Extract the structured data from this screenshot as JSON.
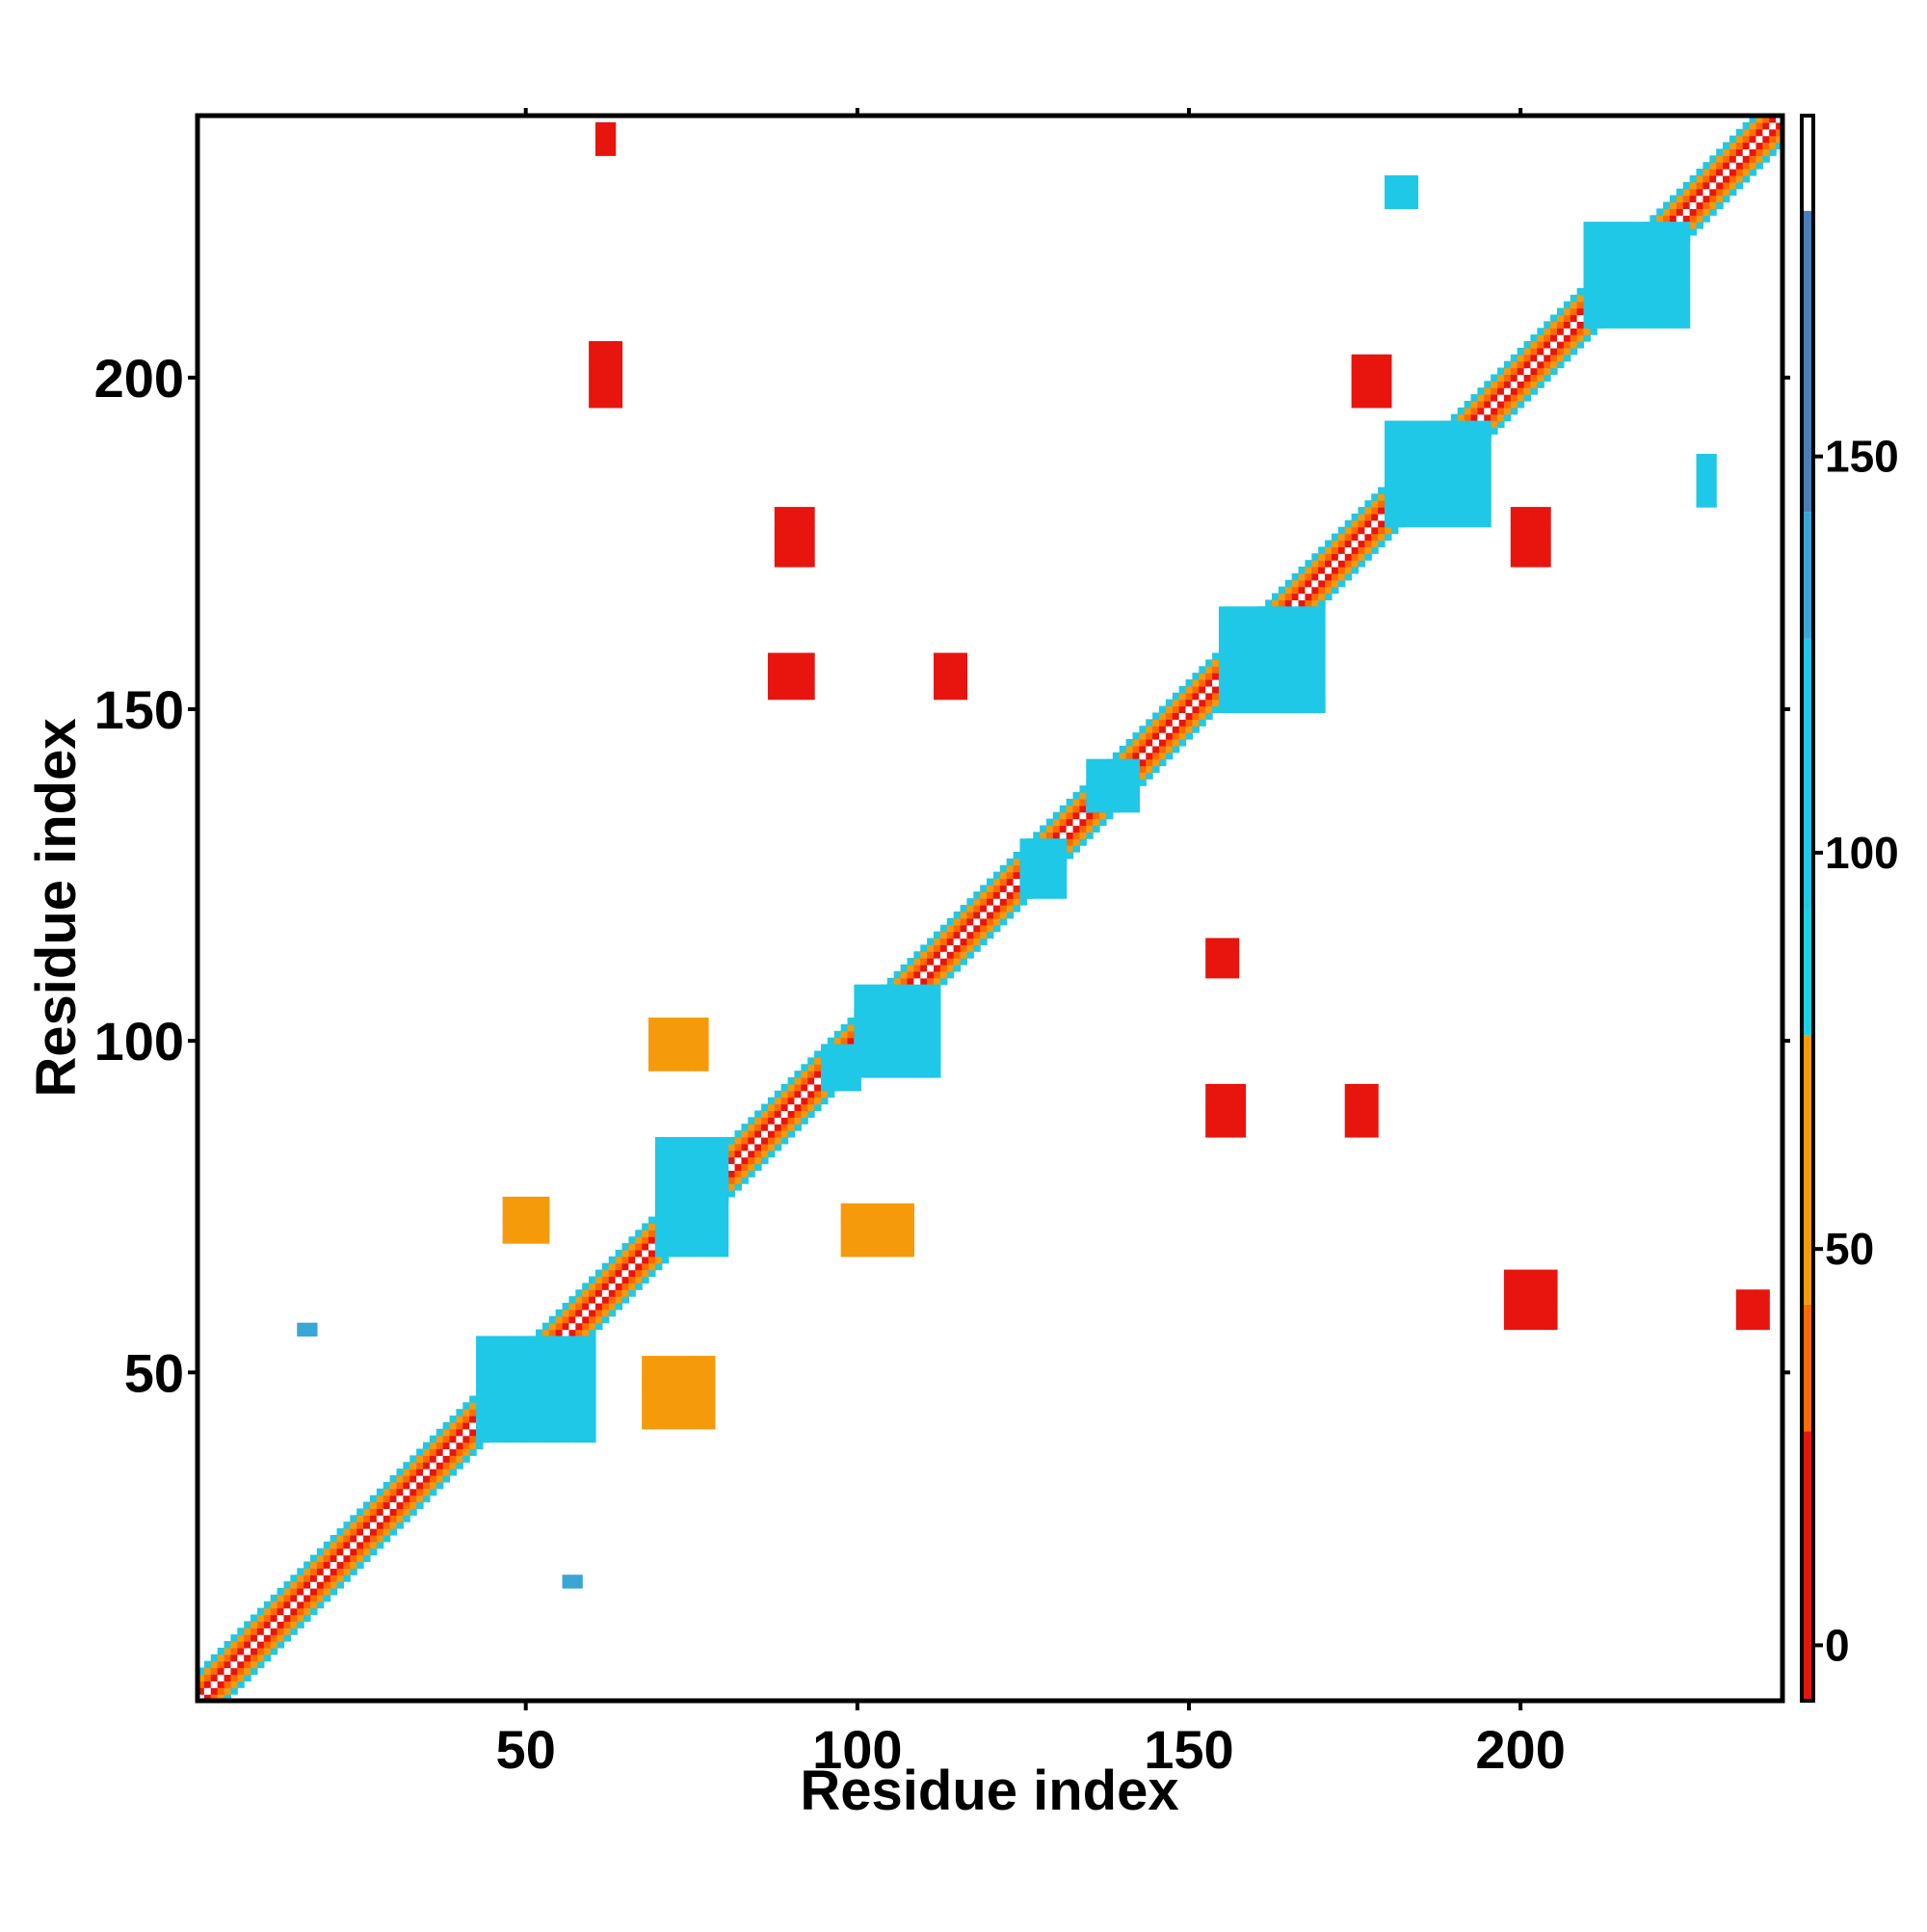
{
  "chart_data": {
    "type": "heatmap",
    "title": "",
    "xlabel": "Residue index",
    "ylabel": "Residue index",
    "xlim": [
      1,
      239
    ],
    "ylim": [
      1,
      239
    ],
    "xticks": [
      50,
      100,
      150,
      200
    ],
    "yticks": [
      50,
      100,
      150,
      200
    ],
    "colorbar": {
      "ticks": [
        0,
        50,
        100,
        150
      ],
      "range": [
        -7,
        193
      ],
      "bands": [
        {
          "from": -7,
          "to": 27,
          "color": "#e8140e"
        },
        {
          "from": 27,
          "to": 43,
          "color": "#ff6a00"
        },
        {
          "from": 43,
          "to": 77,
          "color": "#f59a0a"
        },
        {
          "from": 77,
          "to": 93,
          "color": "#19d3e0"
        },
        {
          "from": 93,
          "to": 127,
          "color": "#1ec8e6"
        },
        {
          "from": 127,
          "to": 143,
          "color": "#3aa6d6"
        },
        {
          "from": 143,
          "to": 181,
          "color": "#4b7eb8"
        },
        {
          "from": 181,
          "to": 193,
          "color": "#ffffff"
        }
      ]
    },
    "grid": false,
    "legend": "colorbar-right",
    "diagonal": {
      "from": 1,
      "to": 239,
      "value": 60
    },
    "contact_blocks": [
      {
        "x": [
          60,
          64
        ],
        "y": [
          196,
          205
        ],
        "value": 5
      },
      {
        "x": [
          61,
          63
        ],
        "y": [
          234,
          238
        ],
        "value": 5
      },
      {
        "x": [
          88,
          93
        ],
        "y": [
          172,
          180
        ],
        "value": 5
      },
      {
        "x": [
          87,
          93
        ],
        "y": [
          152,
          158
        ],
        "value": 5
      },
      {
        "x": [
          112,
          116
        ],
        "y": [
          152,
          158
        ],
        "value": 5
      },
      {
        "x": [
          153,
          157
        ],
        "y": [
          110,
          115
        ],
        "value": 5
      },
      {
        "x": [
          153,
          158
        ],
        "y": [
          86,
          93
        ],
        "value": 5
      },
      {
        "x": [
          174,
          178
        ],
        "y": [
          86,
          93
        ],
        "value": 5
      },
      {
        "x": [
          175,
          180
        ],
        "y": [
          196,
          203
        ],
        "value": 5
      },
      {
        "x": [
          199,
          204
        ],
        "y": [
          172,
          180
        ],
        "value": 5
      },
      {
        "x": [
          198,
          205
        ],
        "y": [
          57,
          65
        ],
        "value": 5
      },
      {
        "x": [
          233,
          237
        ],
        "y": [
          57,
          62
        ],
        "value": 5
      },
      {
        "x": [
          100,
          112
        ],
        "y": [
          95,
          108
        ],
        "value": 100
      },
      {
        "x": [
          43,
          60
        ],
        "y": [
          40,
          55
        ],
        "value": 100
      },
      {
        "x": [
          95,
          100
        ],
        "y": [
          93,
          99
        ],
        "value": 100
      },
      {
        "x": [
          180,
          195
        ],
        "y": [
          178,
          193
        ],
        "value": 100
      },
      {
        "x": [
          210,
          225
        ],
        "y": [
          208,
          223
        ],
        "value": 100
      },
      {
        "x": [
          155,
          170
        ],
        "y": [
          150,
          165
        ],
        "value": 100
      },
      {
        "x": [
          70,
          80
        ],
        "y": [
          68,
          85
        ],
        "value": 100
      },
      {
        "x": [
          69,
          77
        ],
        "y": [
          96,
          103
        ],
        "value": 60
      },
      {
        "x": [
          98,
          108
        ],
        "y": [
          68,
          75
        ],
        "value": 60
      },
      {
        "x": [
          47,
          53
        ],
        "y": [
          70,
          76
        ],
        "value": 60
      },
      {
        "x": [
          68,
          78
        ],
        "y": [
          42,
          52
        ],
        "value": 60
      },
      {
        "x": [
          180,
          184
        ],
        "y": [
          226,
          230
        ],
        "value": 100
      },
      {
        "x": [
          227,
          229
        ],
        "y": [
          181,
          188
        ],
        "value": 100
      },
      {
        "x": [
          125,
          131
        ],
        "y": [
          122,
          130
        ],
        "value": 100
      },
      {
        "x": [
          135,
          142
        ],
        "y": [
          135,
          142
        ],
        "value": 100
      },
      {
        "x": [
          16,
          18
        ],
        "y": [
          56,
          57
        ],
        "value": 140
      },
      {
        "x": [
          56,
          58
        ],
        "y": [
          18,
          19
        ],
        "value": 140
      }
    ]
  }
}
